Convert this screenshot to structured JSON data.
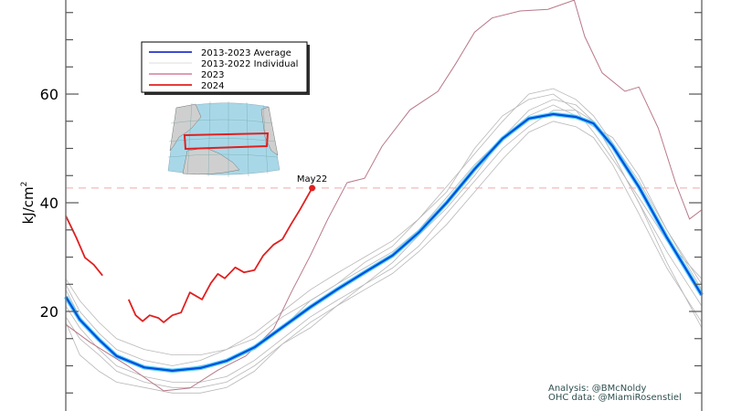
{
  "chart_data": {
    "type": "line",
    "title": "",
    "xlabel": "",
    "ylabel": "kJ/cm²",
    "ylabel_main": "kJ/cm",
    "ylabel_sup": "2",
    "x_units": "day of year",
    "xlim": [
      1,
      365
    ],
    "ylim": [
      1.7,
      77.3
    ],
    "yticks_major": [
      20,
      40,
      60
    ],
    "yticks_minor_step": 5,
    "grid": false,
    "legend_position": "top-left",
    "legend": [
      {
        "label": "2013-2023 Average",
        "color": "#2233cc"
      },
      {
        "label": "2013-2022 Individual",
        "color": "#dddddd"
      },
      {
        "label": "2023",
        "color": "#d890a8"
      },
      {
        "label": "2024",
        "color": "#e02020"
      }
    ],
    "reference_line": {
      "value": 42.7,
      "color": "#f4a8a8"
    },
    "annotation_point": {
      "label": "May22",
      "day": 142,
      "value": 42.7
    },
    "credits": [
      "Analysis: @BMcNoldy",
      "OHC data: @MiamiRosenstiel"
    ],
    "average": {
      "name": "2013-2023 Average",
      "days": [
        1,
        9,
        20,
        30,
        46,
        62,
        78,
        93,
        109,
        125,
        141,
        156,
        172,
        188,
        203,
        219,
        235,
        251,
        266,
        280,
        293,
        303,
        314,
        329,
        345,
        365
      ],
      "values": [
        22.7,
        18.5,
        14.8,
        11.8,
        9.7,
        9.1,
        9.6,
        10.9,
        13.4,
        17.1,
        20.8,
        24.0,
        27.2,
        30.3,
        34.5,
        40.0,
        46.2,
        51.8,
        55.5,
        56.3,
        55.8,
        54.6,
        50.4,
        42.9,
        33.6,
        23.0
      ]
    },
    "individual": {
      "name": "2013-2022 Individual",
      "days": [
        1,
        9,
        20,
        30,
        46,
        62,
        78,
        93,
        109,
        125,
        141,
        156,
        172,
        188,
        203,
        219,
        235,
        251,
        266,
        280,
        293,
        303,
        314,
        329,
        345,
        365
      ],
      "series": [
        [
          25,
          20,
          16,
          13,
          11,
          10,
          11,
          13,
          16,
          20,
          24,
          27,
          30,
          33,
          37,
          43,
          49,
          55,
          60,
          61,
          59,
          56,
          51,
          44,
          35,
          25
        ],
        [
          21,
          17,
          13,
          10,
          8,
          7,
          7,
          8,
          11,
          15,
          19,
          22,
          25,
          28,
          32,
          38,
          44,
          50,
          54,
          57,
          57,
          55,
          49,
          40,
          31,
          21
        ],
        [
          26,
          22,
          18,
          15,
          13,
          12,
          12,
          13,
          15,
          19,
          22,
          25,
          28,
          31,
          35,
          41,
          47,
          52,
          56,
          58,
          56,
          54,
          52,
          45,
          35,
          24
        ],
        [
          19,
          15,
          12,
          9,
          7,
          6,
          6,
          7,
          10,
          14,
          18,
          21,
          24,
          27,
          31,
          36,
          42,
          48,
          53,
          55,
          54,
          52,
          47,
          38,
          28,
          18
        ],
        [
          18,
          12,
          9,
          7,
          6,
          5,
          5,
          6,
          9,
          14,
          17,
          21,
          25,
          29,
          34,
          39,
          45,
          52,
          57,
          59,
          58,
          55,
          49,
          40,
          29,
          17
        ],
        [
          24,
          19,
          15,
          12,
          10,
          9,
          10,
          11,
          13,
          17,
          22,
          25,
          29,
          32,
          37,
          42,
          50,
          56,
          59,
          60,
          57,
          53,
          48,
          41,
          33,
          26
        ]
      ]
    },
    "year_2023": {
      "name": "2023",
      "days": [
        1,
        15,
        36,
        57,
        72,
        88,
        104,
        120,
        130,
        141,
        151,
        162,
        172,
        182,
        198,
        214,
        224,
        235,
        245,
        261,
        277,
        292,
        298,
        308,
        321,
        329,
        340,
        350,
        358,
        365
      ],
      "values": [
        17.6,
        14.3,
        10.1,
        5.4,
        5.9,
        9.2,
        11.8,
        16.8,
        23.5,
        30.3,
        37.0,
        43.7,
        44.5,
        50.4,
        57.1,
        60.5,
        65.5,
        71.4,
        74.0,
        75.3,
        75.6,
        77.3,
        70.6,
        63.9,
        60.5,
        61.3,
        53.8,
        43.7,
        37.0,
        38.7
      ]
    },
    "year_2024": {
      "name": "2024",
      "days": [
        1,
        7,
        12,
        17,
        22,
        null,
        37,
        41,
        45,
        49,
        54,
        57,
        62,
        67,
        72,
        79,
        84,
        88,
        92,
        98,
        103,
        109,
        114,
        120,
        125,
        130,
        135,
        142
      ],
      "values": [
        37.6,
        33.6,
        29.9,
        28.6,
        26.6,
        null,
        22.2,
        19.3,
        18.2,
        19.3,
        18.8,
        18.0,
        19.3,
        19.8,
        23.5,
        22.2,
        25.2,
        26.9,
        26.1,
        28.1,
        27.2,
        27.6,
        30.3,
        32.3,
        33.3,
        36.1,
        38.7,
        42.7
      ]
    }
  }
}
